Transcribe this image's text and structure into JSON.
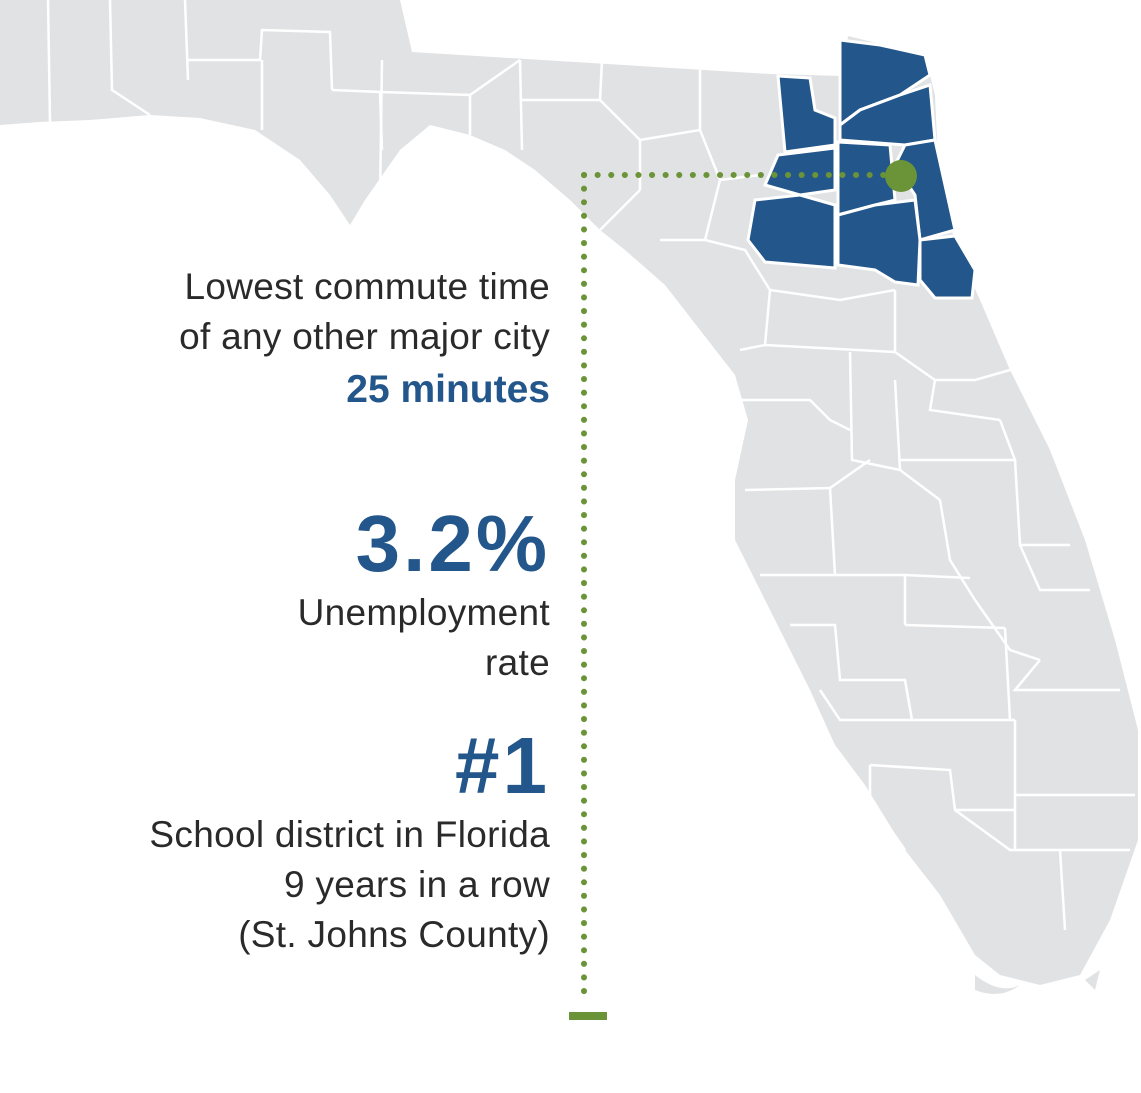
{
  "map": {
    "region": "Florida",
    "highlight_color": "#23568a",
    "land_color": "#e1e2e4",
    "border_color": "#ffffff",
    "marker_color": "#6b9337"
  },
  "stats": {
    "commute": {
      "line1": "Lowest commute time",
      "line2": "of any other major city",
      "value": "25 minutes"
    },
    "unemployment": {
      "value": "3.2%",
      "line1": "Unemployment",
      "line2": "rate"
    },
    "school": {
      "value": "#1",
      "line1": "School district in Florida",
      "line2": "9 years in a row",
      "line3": "(St. Johns County)"
    }
  }
}
